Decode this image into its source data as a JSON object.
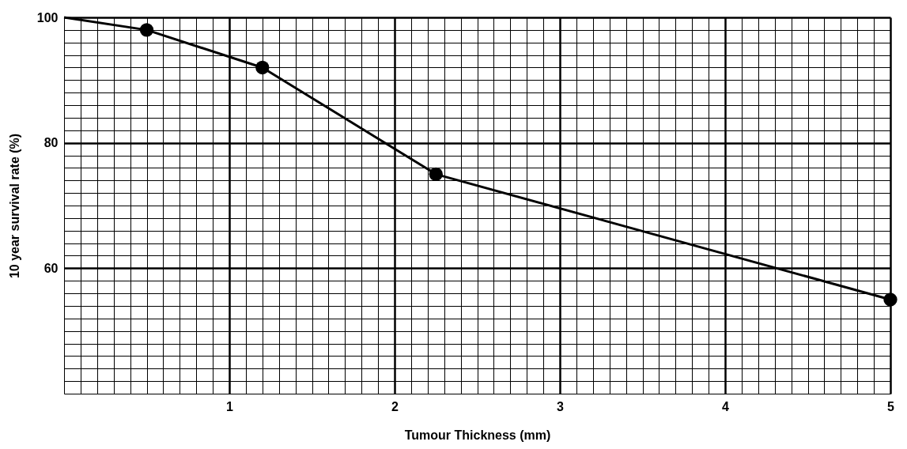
{
  "chart_data": {
    "type": "line",
    "xlabel": "Tumour Thickness (mm)",
    "ylabel": "10 year survival rate (%)",
    "xlim": [
      0,
      5
    ],
    "ylim": [
      40,
      100
    ],
    "xticks": [
      {
        "value": 0,
        "label": null
      },
      {
        "value": 0.1,
        "label": null
      },
      {
        "value": 0.2,
        "label": null
      },
      {
        "value": 0.3,
        "label": null
      },
      {
        "value": 0.4,
        "label": null
      },
      {
        "value": 0.5,
        "label": null
      },
      {
        "value": 0.6,
        "label": null
      },
      {
        "value": 0.7,
        "label": null
      },
      {
        "value": 0.8,
        "label": null
      },
      {
        "value": 0.9,
        "label": null
      },
      1,
      {
        "value": 1.1,
        "label": null
      },
      {
        "value": 1.2,
        "label": null
      },
      {
        "value": 1.3,
        "label": null
      },
      {
        "value": 1.4,
        "label": null
      },
      {
        "value": 1.5,
        "label": null
      },
      {
        "value": 1.6,
        "label": null
      },
      {
        "value": 1.7,
        "label": null
      },
      {
        "value": 1.8,
        "label": null
      },
      {
        "value": 1.9,
        "label": null
      },
      2,
      {
        "value": 2.1,
        "label": null
      },
      {
        "value": 2.2,
        "label": null
      },
      {
        "value": 2.3,
        "label": null
      },
      {
        "value": 2.4,
        "label": null
      },
      {
        "value": 2.5,
        "label": null
      },
      {
        "value": 2.6,
        "label": null
      },
      {
        "value": 2.7,
        "label": null
      },
      {
        "value": 2.8,
        "label": null
      },
      {
        "value": 2.9,
        "label": null
      },
      3,
      {
        "value": 3.1,
        "label": null
      },
      {
        "value": 3.2,
        "label": null
      },
      {
        "value": 3.3,
        "label": null
      },
      {
        "value": 3.4,
        "label": null
      },
      {
        "value": 3.5,
        "label": null
      },
      {
        "value": 3.6,
        "label": null
      },
      {
        "value": 3.7,
        "label": null
      },
      {
        "value": 3.8,
        "label": null
      },
      {
        "value": 3.9,
        "label": null
      },
      4,
      {
        "value": 4.1,
        "label": null
      },
      {
        "value": 4.2,
        "label": null
      },
      {
        "value": 4.3,
        "label": null
      },
      {
        "value": 4.4,
        "label": null
      },
      {
        "value": 4.5,
        "label": null
      },
      {
        "value": 4.6,
        "label": null
      },
      {
        "value": 4.7,
        "label": null
      },
      {
        "value": 4.8,
        "label": null
      },
      {
        "value": 4.9,
        "label": null
      },
      5
    ],
    "yticks": [
      {
        "value": 40,
        "label": null
      },
      {
        "value": 42,
        "label": null
      },
      {
        "value": 44,
        "label": null
      },
      {
        "value": 46,
        "label": null
      },
      {
        "value": 48,
        "label": null
      },
      {
        "value": 50,
        "label": null
      },
      {
        "value": 52,
        "label": null
      },
      {
        "value": 54,
        "label": null
      },
      {
        "value": 56,
        "label": null
      },
      {
        "value": 58,
        "label": null
      },
      60,
      {
        "value": 62,
        "label": null
      },
      {
        "value": 64,
        "label": null
      },
      {
        "value": 66,
        "label": null
      },
      {
        "value": 68,
        "label": null
      },
      {
        "value": 70,
        "label": null
      },
      {
        "value": 72,
        "label": null
      },
      {
        "value": 74,
        "label": null
      },
      {
        "value": 76,
        "label": null
      },
      {
        "value": 78,
        "label": null
      },
      80,
      {
        "value": 82,
        "label": null
      },
      {
        "value": 84,
        "label": null
      },
      {
        "value": 86,
        "label": null
      },
      {
        "value": 88,
        "label": null
      },
      {
        "value": 90,
        "label": null
      },
      {
        "value": 92,
        "label": null
      },
      {
        "value": 94,
        "label": null
      },
      {
        "value": 96,
        "label": null
      },
      {
        "value": 98,
        "label": null
      },
      100
    ],
    "grid": true,
    "series": [
      {
        "color": "#000000",
        "marker": "none",
        "line_style": "solid",
        "x": [
          0,
          0.5,
          1.2,
          2.25,
          5
        ],
        "values": [
          100,
          98,
          92,
          75,
          55
        ]
      },
      {
        "type": "scatter",
        "color": "#000000",
        "marker": "circle",
        "x": [
          0.5,
          1.2,
          2.25,
          5
        ],
        "values": [
          98,
          92,
          75,
          55
        ]
      }
    ]
  }
}
